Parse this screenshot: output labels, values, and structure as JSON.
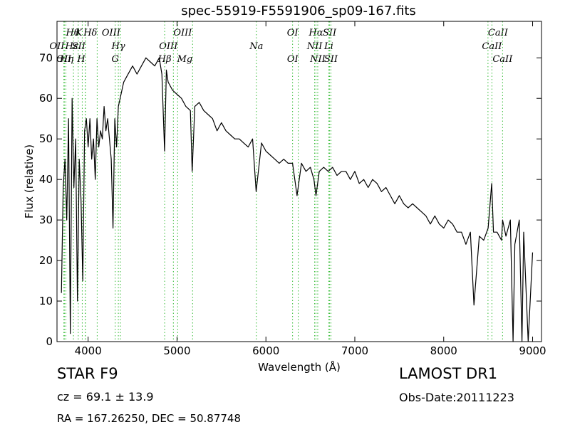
{
  "header": {
    "title": "spec-55919-F5591906_sp09-167.fits"
  },
  "footer": {
    "object_class": "STAR   F9",
    "survey": "LAMOST DR1",
    "redshift": "cz = 69.1  ± 13.9",
    "obs_date": "Obs-Date:20111223",
    "coords": "RA = 167.26250, DEC = 50.87748"
  },
  "colors": {
    "spectrum": "#000000",
    "line_markers": "#33bb33",
    "axes": "#000000"
  },
  "chart_data": {
    "type": "line",
    "title": "spec-55919-F5591906_sp09-167.fits",
    "xlabel": "Wavelength (Å)",
    "ylabel": "Flux (relative)",
    "xlim": [
      3650,
      9100
    ],
    "ylim": [
      0,
      79
    ],
    "xticks": [
      "4000",
      "5000",
      "6000",
      "7000",
      "8000",
      "9000"
    ],
    "yticks": [
      "0",
      "10",
      "20",
      "30",
      "40",
      "50",
      "60",
      "70"
    ],
    "grid": false,
    "series": [
      {
        "values_note": "",
        "x": [
          3700,
          3720,
          3740,
          3760,
          3780,
          3800,
          3820,
          3840,
          3860,
          3880,
          3900,
          3920,
          3940,
          3960,
          3980,
          4000,
          4020,
          4040,
          4060,
          4080,
          4100,
          4120,
          4140,
          4160,
          4180,
          4200,
          4220,
          4240,
          4260,
          4280,
          4300,
          4320,
          4340,
          4360,
          4380,
          4400,
          4450,
          4500,
          4550,
          4600,
          4650,
          4700,
          4750,
          4800,
          4830,
          4860,
          4880,
          4900,
          4950,
          5000,
          5050,
          5100,
          5150,
          5170,
          5200,
          5250,
          5300,
          5350,
          5400,
          5450,
          5500,
          5550,
          5600,
          5650,
          5700,
          5750,
          5800,
          5850,
          5890,
          5950,
          6000,
          6050,
          6100,
          6150,
          6200,
          6250,
          6300,
          6350,
          6400,
          6450,
          6500,
          6540,
          6563,
          6600,
          6650,
          6700,
          6750,
          6800,
          6850,
          6900,
          6950,
          7000,
          7050,
          7100,
          7150,
          7200,
          7250,
          7300,
          7350,
          7400,
          7450,
          7500,
          7550,
          7600,
          7650,
          7700,
          7750,
          7800,
          7850,
          7900,
          7950,
          8000,
          8050,
          8100,
          8150,
          8200,
          8250,
          8300,
          8340,
          8400,
          8450,
          8500,
          8540,
          8560,
          8600,
          8650,
          8662,
          8700,
          8750,
          8780,
          8800,
          8850,
          8880,
          8900,
          8950,
          9000
        ],
        "y": [
          12,
          38,
          45,
          30,
          55,
          2,
          60,
          38,
          50,
          10,
          45,
          35,
          15,
          52,
          55,
          48,
          55,
          45,
          50,
          40,
          55,
          48,
          52,
          50,
          58,
          52,
          55,
          50,
          45,
          28,
          55,
          48,
          58,
          60,
          62,
          64,
          66,
          68,
          66,
          68,
          70,
          69,
          68,
          70,
          66,
          47,
          67,
          64,
          62,
          61,
          60,
          58,
          57,
          42,
          58,
          59,
          57,
          56,
          55,
          52,
          54,
          52,
          51,
          50,
          50,
          49,
          48,
          50,
          37,
          49,
          47,
          46,
          45,
          44,
          45,
          44,
          44,
          36,
          44,
          42,
          43,
          40,
          36,
          42,
          43,
          42,
          43,
          41,
          42,
          42,
          40,
          42,
          39,
          40,
          38,
          40,
          39,
          37,
          38,
          36,
          34,
          36,
          34,
          33,
          34,
          33,
          32,
          31,
          29,
          31,
          29,
          28,
          30,
          29,
          27,
          27,
          24,
          27,
          9,
          26,
          25,
          28,
          39,
          27,
          27,
          25,
          30,
          26,
          30,
          0,
          24,
          30,
          0,
          27,
          0,
          22
        ]
      }
    ],
    "lines": [
      {
        "label": "OII",
        "x": 3727,
        "row": 3,
        "anchor": "middle"
      },
      {
        "label": "Hθ",
        "x": 3750,
        "row": 1,
        "anchor": "start"
      },
      {
        "label": "OII",
        "x": 3733,
        "row": 2,
        "anchor": "end"
      },
      {
        "label": "Hη",
        "x": 3835,
        "row": 3,
        "anchor": "end"
      },
      {
        "label": "Hε",
        "x": 3889,
        "row": 2,
        "anchor": "end"
      },
      {
        "label": "K",
        "x": 3934,
        "row": 1,
        "anchor": "end"
      },
      {
        "label": "SII",
        "x": 3970,
        "row": 2,
        "anchor": "end"
      },
      {
        "label": "H",
        "x": 3968,
        "row": 3,
        "anchor": "end"
      },
      {
        "label": "Hδ",
        "x": 4102,
        "row": 1,
        "anchor": "end"
      },
      {
        "label": "Hγ",
        "x": 4340,
        "row": 2,
        "anchor": "middle"
      },
      {
        "label": "G",
        "x": 4305,
        "row": 3,
        "anchor": "middle"
      },
      {
        "label": "OIII",
        "x": 4363,
        "row": 1,
        "anchor": "end"
      },
      {
        "label": "OIII",
        "x": 4959,
        "row": 1,
        "anchor": "start"
      },
      {
        "label": "OIII",
        "x": 5007,
        "row": 2,
        "anchor": "end"
      },
      {
        "label": "Hβ",
        "x": 4861,
        "row": 3,
        "anchor": "middle"
      },
      {
        "label": "Mg",
        "x": 5175,
        "row": 3,
        "anchor": "end"
      },
      {
        "label": "Na",
        "x": 5893,
        "row": 2,
        "anchor": "middle"
      },
      {
        "label": "OI",
        "x": 6300,
        "row": 1,
        "anchor": "middle"
      },
      {
        "label": "OI",
        "x": 6364,
        "row": 3,
        "anchor": "end"
      },
      {
        "label": "Hα",
        "x": 6563,
        "row": 1,
        "anchor": "middle"
      },
      {
        "label": "SII",
        "x": 6716,
        "row": 1,
        "anchor": "middle"
      },
      {
        "label": "NII",
        "x": 6548,
        "row": 2,
        "anchor": "middle"
      },
      {
        "label": "Li",
        "x": 6707,
        "row": 2,
        "anchor": "middle"
      },
      {
        "label": "NII",
        "x": 6583,
        "row": 3,
        "anchor": "middle"
      },
      {
        "label": "SII",
        "x": 6731,
        "row": 3,
        "anchor": "middle"
      },
      {
        "label": "CaII",
        "x": 8498,
        "row": 1,
        "anchor": "start"
      },
      {
        "label": "CaII",
        "x": 8542,
        "row": 2,
        "anchor": "middle"
      },
      {
        "label": "CaII",
        "x": 8662,
        "row": 3,
        "anchor": "middle"
      }
    ]
  }
}
